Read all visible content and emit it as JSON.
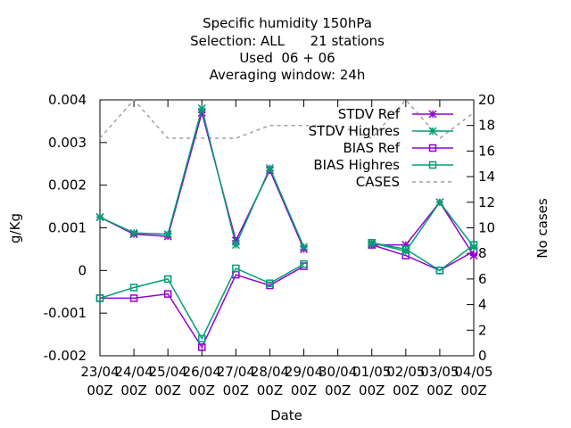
{
  "chart_data": {
    "type": "line",
    "title_lines": [
      "Specific humidity 150hPa",
      "Selection: ALL      21 stations",
      "Used  06 + 06",
      "Averaging window: 24h"
    ],
    "xlabel": "Date",
    "ylabel": "g/Kg",
    "y2label": "No cases",
    "ylim": [
      -0.002,
      0.004
    ],
    "y2lim": [
      0,
      20
    ],
    "yticks": [
      "-0.002",
      "-0.001",
      "0",
      "0.001",
      "0.002",
      "0.003",
      "0.004"
    ],
    "y2ticks": [
      "0",
      "2",
      "4",
      "6",
      "8",
      "10",
      "12",
      "14",
      "16",
      "18",
      "20"
    ],
    "categories": [
      [
        "23/04",
        "00Z"
      ],
      [
        "24/04",
        "00Z"
      ],
      [
        "25/04",
        "00Z"
      ],
      [
        "26/04",
        "00Z"
      ],
      [
        "27/04",
        "00Z"
      ],
      [
        "28/04",
        "00Z"
      ],
      [
        "29/04",
        "00Z"
      ],
      [
        "30/04",
        "00Z"
      ],
      [
        "01/05",
        "00Z"
      ],
      [
        "02/05",
        "00Z"
      ],
      [
        "03/05",
        "00Z"
      ],
      [
        "04/05",
        "00Z"
      ]
    ],
    "legend_position": "top-right",
    "series": [
      {
        "name": "STDV Ref",
        "axis": "y1",
        "marker": "star",
        "color": "#9400d3",
        "values": [
          0.00125,
          0.00085,
          0.0008,
          0.0037,
          0.0007,
          0.00235,
          0.0005,
          null,
          0.0006,
          0.0006,
          0.0016,
          0.00035
        ]
      },
      {
        "name": "STDV Highres",
        "axis": "y1",
        "marker": "star",
        "color": "#009e73",
        "values": [
          0.00125,
          0.00088,
          0.00085,
          0.0038,
          0.0006,
          0.0024,
          0.00055,
          null,
          0.00065,
          0.00045,
          0.0016,
          0.00055
        ]
      },
      {
        "name": "BIAS Ref",
        "axis": "y1",
        "marker": "square",
        "color": "#9400d3",
        "values": [
          -0.00065,
          -0.00065,
          -0.00055,
          -0.0018,
          -0.0001,
          -0.00035,
          0.0001,
          null,
          0.0006,
          0.00035,
          0.0,
          0.00045
        ]
      },
      {
        "name": "BIAS Highres",
        "axis": "y1",
        "marker": "square",
        "color": "#009e73",
        "values": [
          -0.00065,
          -0.0004,
          -0.0002,
          -0.0016,
          5e-05,
          -0.0003,
          0.00015,
          null,
          0.00065,
          0.0005,
          0.0,
          0.0006
        ]
      },
      {
        "name": "CASES",
        "axis": "y2",
        "marker": "none",
        "color": "#a0a0a0",
        "dashed": true,
        "values": [
          17,
          20,
          17,
          17,
          17,
          18,
          18,
          18,
          17,
          20,
          17,
          19
        ]
      }
    ]
  }
}
